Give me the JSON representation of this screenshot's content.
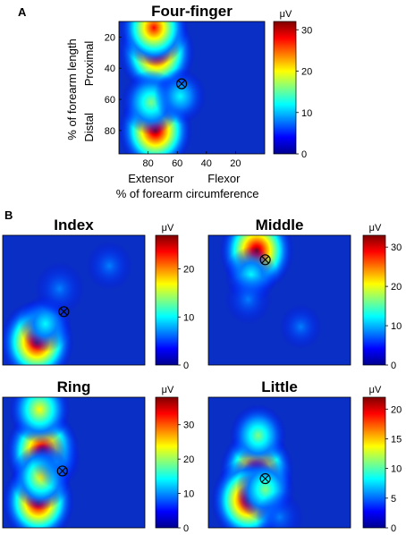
{
  "panel_a_label": "A",
  "panel_b_label": "B",
  "colormap": [
    "#00008f",
    "#0000ff",
    "#0080ff",
    "#00ffff",
    "#80ff80",
    "#ffff00",
    "#ff8000",
    "#ff0000",
    "#800000"
  ],
  "background_color": "#0a2fc4",
  "chart_data": [
    {
      "id": "four-finger",
      "type": "heatmap",
      "title": "Four-finger",
      "xlabel": "% of forearm circumference",
      "ylabel": "% of forearm length",
      "x_ticks": [
        "80",
        "60",
        "40",
        "20"
      ],
      "y_ticks": [
        "20",
        "40",
        "60",
        "80"
      ],
      "x_region_labels": [
        "Extensor",
        "Flexor"
      ],
      "y_region_labels": [
        "Proximal",
        "Distal"
      ],
      "xlim": [
        100,
        0
      ],
      "ylim": [
        10,
        95
      ],
      "colorbar": {
        "unit": "μV",
        "min": 0,
        "max": 32,
        "ticks": [
          0,
          10,
          20,
          30
        ]
      },
      "electrode_marker": {
        "x": 57,
        "y": 50
      },
      "hotspots": [
        {
          "x": 74,
          "y": 30,
          "peak": 32
        },
        {
          "x": 76,
          "y": 14,
          "peak": 26
        },
        {
          "x": 75,
          "y": 80,
          "peak": 30
        },
        {
          "x": 78,
          "y": 62,
          "peak": 17
        },
        {
          "x": 58,
          "y": 58,
          "peak": 10
        }
      ]
    },
    {
      "id": "index",
      "type": "heatmap",
      "title": "Index",
      "xlim": [
        100,
        0
      ],
      "ylim": [
        10,
        95
      ],
      "colorbar": {
        "unit": "μV",
        "min": 0,
        "max": 27,
        "ticks": [
          0,
          10,
          20
        ]
      },
      "electrode_marker": {
        "x": 57,
        "y": 60
      },
      "hotspots": [
        {
          "x": 76,
          "y": 80,
          "peak": 27
        },
        {
          "x": 70,
          "y": 68,
          "peak": 10
        },
        {
          "x": 60,
          "y": 45,
          "peak": 8
        },
        {
          "x": 25,
          "y": 30,
          "peak": 5
        }
      ]
    },
    {
      "id": "middle",
      "type": "heatmap",
      "title": "Middle",
      "xlim": [
        100,
        0
      ],
      "ylim": [
        10,
        95
      ],
      "colorbar": {
        "unit": "μV",
        "min": 0,
        "max": 33,
        "ticks": [
          0,
          10,
          20,
          30
        ]
      },
      "electrode_marker": {
        "x": 60,
        "y": 26
      },
      "hotspots": [
        {
          "x": 66,
          "y": 20,
          "peak": 33
        },
        {
          "x": 70,
          "y": 36,
          "peak": 12
        },
        {
          "x": 72,
          "y": 52,
          "peak": 7
        },
        {
          "x": 35,
          "y": 70,
          "peak": 3
        }
      ]
    },
    {
      "id": "ring",
      "type": "heatmap",
      "title": "Ring",
      "xlim": [
        100,
        0
      ],
      "ylim": [
        10,
        95
      ],
      "colorbar": {
        "unit": "μV",
        "min": 0,
        "max": 38,
        "ticks": [
          0,
          10,
          20,
          30
        ]
      },
      "electrode_marker": {
        "x": 58,
        "y": 58
      },
      "hotspots": [
        {
          "x": 72,
          "y": 45,
          "peak": 38
        },
        {
          "x": 75,
          "y": 78,
          "peak": 36
        },
        {
          "x": 74,
          "y": 18,
          "peak": 24
        },
        {
          "x": 73,
          "y": 62,
          "peak": 22
        },
        {
          "x": 62,
          "y": 52,
          "peak": 10
        }
      ]
    },
    {
      "id": "little",
      "type": "heatmap",
      "title": "Little",
      "xlim": [
        100,
        0
      ],
      "ylim": [
        10,
        95
      ],
      "colorbar": {
        "unit": "μV",
        "min": 0,
        "max": 22,
        "ticks": [
          0,
          5,
          10,
          15,
          20
        ]
      },
      "electrode_marker": {
        "x": 60,
        "y": 63
      },
      "hotspots": [
        {
          "x": 66,
          "y": 58,
          "peak": 22
        },
        {
          "x": 72,
          "y": 77,
          "peak": 22
        },
        {
          "x": 65,
          "y": 35,
          "peak": 11
        },
        {
          "x": 60,
          "y": 70,
          "peak": 12
        },
        {
          "x": 50,
          "y": 88,
          "peak": 5
        }
      ]
    }
  ]
}
